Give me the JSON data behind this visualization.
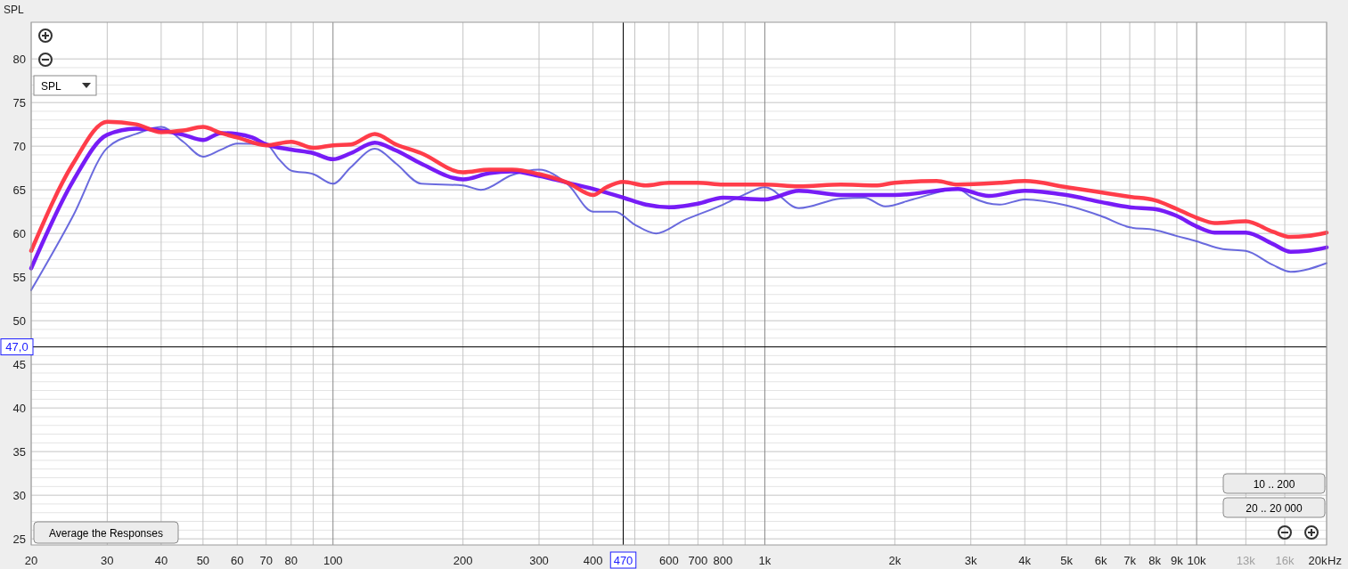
{
  "chart_data": {
    "type": "line",
    "ylabel": "SPL",
    "log": "x",
    "xlabel": "Hz",
    "grid": true,
    "line_style": "solid",
    "marker": "none",
    "xlim": [
      20,
      20000
    ],
    "ylim": [
      24.3,
      84.2
    ],
    "xticks": [
      20,
      30,
      40,
      50,
      60,
      70,
      80,
      {
        "value": 90,
        "label": null
      },
      100,
      200,
      300,
      400,
      {
        "value": 500,
        "label": null
      },
      600,
      700,
      800,
      {
        "value": 900,
        "label": null
      },
      {
        "value": 1000,
        "label": "1k"
      },
      {
        "value": 2000,
        "label": "2k"
      },
      {
        "value": 3000,
        "label": "3k"
      },
      {
        "value": 4000,
        "label": "4k"
      },
      {
        "value": 5000,
        "label": "5k"
      },
      {
        "value": 6000,
        "label": "6k"
      },
      {
        "value": 7000,
        "label": "7k"
      },
      {
        "value": 8000,
        "label": "8k"
      },
      {
        "value": 9000,
        "label": "9k"
      },
      {
        "value": 10000,
        "label": "10k"
      },
      {
        "value": 13000,
        "label": "13k"
      },
      {
        "value": 16000,
        "label": "16k"
      },
      {
        "value": 20000,
        "label": "20k"
      }
    ],
    "yticks": [
      25,
      {
        "value": 26,
        "label": null
      },
      {
        "value": 27,
        "label": null
      },
      {
        "value": 28,
        "label": null
      },
      {
        "value": 29,
        "label": null
      },
      30,
      {
        "value": 31,
        "label": null
      },
      {
        "value": 32,
        "label": null
      },
      {
        "value": 33,
        "label": null
      },
      {
        "value": 34,
        "label": null
      },
      35,
      {
        "value": 36,
        "label": null
      },
      {
        "value": 37,
        "label": null
      },
      {
        "value": 38,
        "label": null
      },
      {
        "value": 39,
        "label": null
      },
      40,
      {
        "value": 41,
        "label": null
      },
      {
        "value": 42,
        "label": null
      },
      {
        "value": 43,
        "label": null
      },
      {
        "value": 44,
        "label": null
      },
      45,
      {
        "value": 46,
        "label": null
      },
      {
        "value": 47,
        "label": null
      },
      {
        "value": 48,
        "label": null
      },
      {
        "value": 49,
        "label": null
      },
      50,
      {
        "value": 51,
        "label": null
      },
      {
        "value": 52,
        "label": null
      },
      {
        "value": 53,
        "label": null
      },
      {
        "value": 54,
        "label": null
      },
      55,
      {
        "value": 56,
        "label": null
      },
      {
        "value": 57,
        "label": null
      },
      {
        "value": 58,
        "label": null
      },
      {
        "value": 59,
        "label": null
      },
      60,
      {
        "value": 61,
        "label": null
      },
      {
        "value": 62,
        "label": null
      },
      {
        "value": 63,
        "label": null
      },
      {
        "value": 64,
        "label": null
      },
      65,
      {
        "value": 66,
        "label": null
      },
      {
        "value": 67,
        "label": null
      },
      {
        "value": 68,
        "label": null
      },
      {
        "value": 69,
        "label": null
      },
      70,
      {
        "value": 71,
        "label": null
      },
      {
        "value": 72,
        "label": null
      },
      {
        "value": 73,
        "label": null
      },
      {
        "value": 74,
        "label": null
      },
      75,
      {
        "value": 76,
        "label": null
      },
      {
        "value": 77,
        "label": null
      },
      {
        "value": 78,
        "label": null
      },
      {
        "value": 79,
        "label": null
      },
      80
    ],
    "ref_lines": [
      {
        "axis": "x",
        "value": 470,
        "label": "470",
        "color": "#000000"
      },
      {
        "axis": "y",
        "value": 47,
        "label": "47,0",
        "color": "#000000"
      }
    ],
    "annotations": [
      "SPL",
      "Average the Responses",
      "10 .. 200",
      "20 .. 20 000"
    ],
    "series": [
      {
        "color": "#5050d8",
        "x": [
          20,
          25,
          30,
          35,
          40,
          45,
          50,
          55,
          60,
          70,
          75,
          80,
          90,
          100,
          110,
          125,
          140,
          160,
          200,
          220,
          260,
          300,
          350,
          400,
          450,
          500,
          560,
          650,
          800,
          900,
          1000,
          1200,
          1500,
          1700,
          1900,
          2200,
          2800,
          3000,
          3500,
          4000,
          5000,
          6000,
          7000,
          8000,
          9000,
          10000,
          11500,
          13000,
          15000,
          16500,
          20000
        ],
        "values": [
          53.5,
          62,
          69.8,
          71.4,
          72.2,
          70.5,
          68.8,
          69.6,
          70.3,
          70.2,
          68.5,
          67.2,
          66.8,
          65.7,
          67.6,
          69.7,
          68,
          65.7,
          65.5,
          65,
          66.7,
          67.3,
          65.6,
          62.5,
          62.5,
          61,
          60,
          61.5,
          63.3,
          64.5,
          65.3,
          62.9,
          64,
          64.1,
          63.1,
          63.9,
          65.1,
          64.2,
          63.3,
          63.9,
          63.2,
          62,
          60.7,
          60.4,
          59.7,
          59.1,
          58.2,
          58,
          56.4,
          55.6,
          56.6
        ]
      },
      {
        "color": "#7010f5",
        "x": [
          20,
          25,
          30,
          35,
          40,
          45,
          50,
          55,
          60,
          65,
          70,
          80,
          90,
          100,
          110,
          125,
          140,
          160,
          200,
          230,
          260,
          300,
          350,
          400,
          470,
          530,
          600,
          700,
          800,
          1000,
          1200,
          1500,
          2000,
          2800,
          3300,
          4000,
          5000,
          6000,
          7000,
          8000,
          9000,
          10000,
          11000,
          13000,
          15000,
          16500,
          18000,
          20000
        ],
        "values": [
          56,
          66,
          71.3,
          72,
          71.8,
          71.3,
          70.7,
          71.5,
          71.4,
          71,
          70.2,
          69.6,
          69.2,
          68.5,
          69.2,
          70.4,
          69.5,
          68,
          66.2,
          66.9,
          67.1,
          66.6,
          65.8,
          65.1,
          64.1,
          63.3,
          63,
          63.4,
          64.1,
          63.9,
          64.9,
          64.4,
          64.4,
          65.1,
          64.3,
          64.9,
          64.4,
          63.6,
          63,
          62.8,
          62,
          60.8,
          60.1,
          60.1,
          58.8,
          57.9,
          58,
          58.4
        ]
      },
      {
        "color": "#ff3340",
        "x": [
          20,
          25,
          30,
          35,
          40,
          45,
          50,
          55,
          60,
          70,
          80,
          90,
          100,
          110,
          125,
          140,
          160,
          200,
          230,
          260,
          300,
          350,
          400,
          430,
          470,
          530,
          600,
          700,
          800,
          1000,
          1200,
          1500,
          1800,
          2000,
          2500,
          2800,
          3500,
          4000,
          5000,
          6000,
          7000,
          8000,
          9000,
          10000,
          11000,
          13000,
          15000,
          16500,
          18000,
          20000
        ],
        "values": [
          58,
          68,
          72.8,
          72.5,
          71.6,
          71.8,
          72.2,
          71.5,
          71,
          70.1,
          70.5,
          69.8,
          70.1,
          70.2,
          71.4,
          70.2,
          69.2,
          67,
          67.3,
          67.3,
          66.8,
          65.8,
          64.4,
          65.3,
          65.9,
          65.5,
          65.8,
          65.8,
          65.6,
          65.6,
          65.4,
          65.6,
          65.5,
          65.8,
          66,
          65.6,
          65.8,
          66,
          65.3,
          64.7,
          64.2,
          63.8,
          62.8,
          61.8,
          61.2,
          61.4,
          60.2,
          59.6,
          59.7,
          60.1
        ]
      }
    ]
  }
}
